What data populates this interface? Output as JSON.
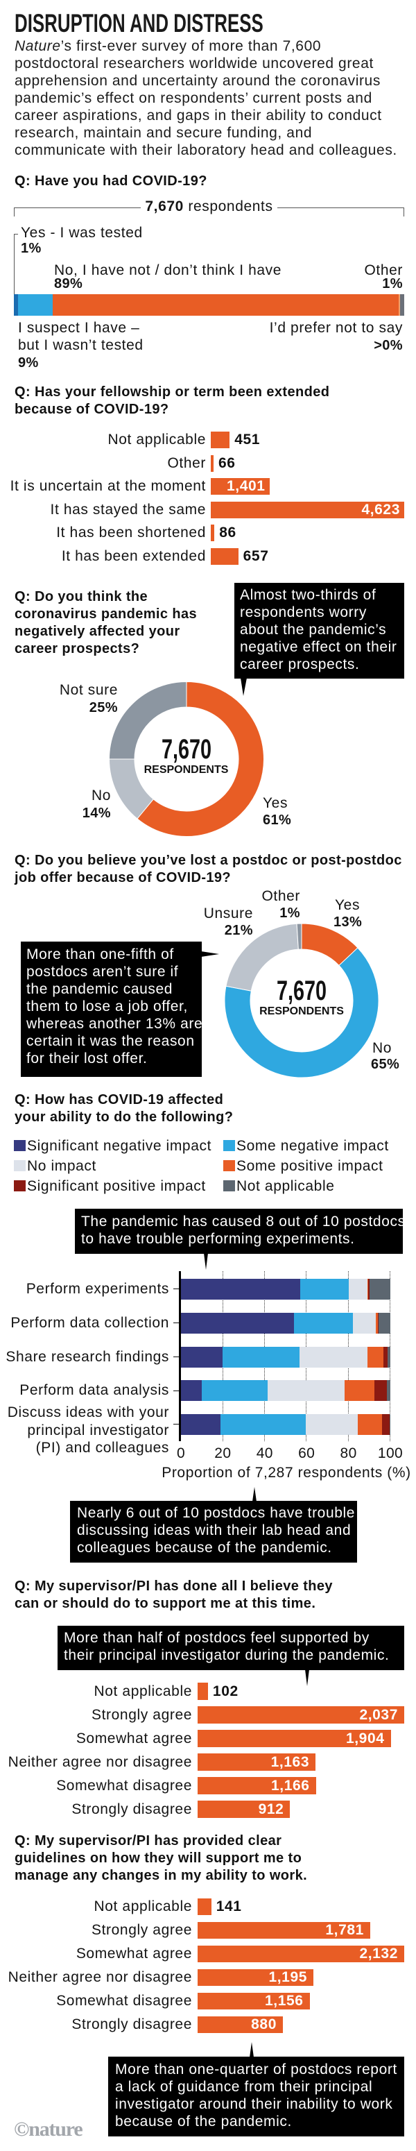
{
  "title": "DISRUPTION AND DISTRESS",
  "intro": {
    "lead_italic": "Nature",
    "text": "’s first-ever survey of more than 7,600\npostdoctoral researchers worldwide uncovered great\napprehension and uncertainty around the coronavirus\npandemic’s effect on respondents’ current posts and\ncareer aspirations, and gaps in their ability to conduct\nresearch, maintain and secure funding, and\ncommunicate with their laboratory head and colleagues."
  },
  "chart_data": [
    {
      "id": "had-covid",
      "type": "bar",
      "orientation": "horizontal",
      "stacked": true,
      "unit": "%",
      "title": "Q: Have you had COVID-19?",
      "total": "7,670",
      "total_suffix": " respondents",
      "segments": [
        {
          "name": "Yes - I was tested",
          "value": 1,
          "label": "1%",
          "color": "#1b6cb0"
        },
        {
          "name": "I suspect I have –\nbut I wasn’t tested",
          "value": 9,
          "label": "9%",
          "color": "#2fa8e0"
        },
        {
          "name": "No, I have not / don’t think I have",
          "value": 89,
          "label": "89%",
          "color": "#e85d25"
        },
        {
          "name": "I’d prefer not to say",
          "value": 0.4,
          "label": ">0%",
          "color": "#f2a06a"
        },
        {
          "name": "Other",
          "value": 1,
          "label": "1%",
          "color": "#6b7079"
        }
      ]
    },
    {
      "id": "fellowship-extended",
      "type": "bar",
      "orientation": "horizontal",
      "title": "Q: Has your fellowship or term been extended\nbecause of COVID-19?",
      "categories": [
        "Not applicable",
        "Other",
        "It is uncertain at the moment",
        "It has stayed the same",
        "It has been shortened",
        "It has been extended"
      ],
      "values": [
        451,
        66,
        1401,
        4623,
        86,
        657
      ],
      "value_labels": [
        "451",
        "66",
        "1,401",
        "4,623",
        "86",
        "657"
      ],
      "color": "#e85d25"
    },
    {
      "id": "career-prospects",
      "type": "pie",
      "donut": true,
      "title": "Q: Do you think the\ncoronavirus pandemic has\nnegatively affected your\ncareer prospects?",
      "center_value": "7,670",
      "center_label": "RESPONDENTS",
      "slices": [
        {
          "name": "Yes",
          "value": 61,
          "label": "61%",
          "color": "#e85d25"
        },
        {
          "name": "No",
          "value": 14,
          "label": "14%",
          "color": "#b8bfc8"
        },
        {
          "name": "Not sure",
          "value": 25,
          "label": "25%",
          "color": "#8c96a1"
        }
      ],
      "callout": "Almost two-thirds of\nrespondents worry\nabout the pandemic’s\nnegative effect on their\ncareer prospects."
    },
    {
      "id": "lost-job-offer",
      "type": "pie",
      "donut": true,
      "title": "Q: Do you believe you’ve lost a postdoc or post-postdoc\njob offer because of COVID-19?",
      "center_value": "7,670",
      "center_label": "RESPONDENTS",
      "slices": [
        {
          "name": "Yes",
          "value": 13,
          "label": "13%",
          "color": "#e85d25"
        },
        {
          "name": "No",
          "value": 65,
          "label": "65%",
          "color": "#2fa8e0"
        },
        {
          "name": "Unsure",
          "value": 21,
          "label": "21%",
          "color": "#bcc3cc"
        },
        {
          "name": "Other",
          "value": 1,
          "label": "1%",
          "color": "#8c96a1"
        }
      ],
      "callout": "More than one-fifth of\npostdocs aren’t sure if\nthe pandemic caused\nthem to lose a job offer,\nwhereas another 13% are\ncertain it was the reason\nfor their lost offer."
    },
    {
      "id": "ability-impact",
      "type": "bar",
      "orientation": "horizontal",
      "stacked": true,
      "title": "Q: How has COVID-19 affected\nyour ability to do the following?",
      "categories": [
        "Perform experiments",
        "Perform data collection",
        "Share research findings",
        "Perform data analysis",
        "Discuss ideas with your\nprincipal investigator\n(PI) and colleagues"
      ],
      "series": [
        {
          "name": "Significant negative impact",
          "color": "#363a80",
          "values": [
            57,
            54,
            20,
            10,
            19
          ]
        },
        {
          "name": "Some negative impact",
          "color": "#2fa8e0",
          "values": [
            23,
            28,
            36.5,
            31.5,
            40.5
          ]
        },
        {
          "name": "No impact",
          "color": "#dde2ea",
          "values": [
            9,
            11,
            32.5,
            36.5,
            25
          ]
        },
        {
          "name": "Some positive impact",
          "color": "#e85d25",
          "values": [
            0.5,
            1,
            7.8,
            14.3,
            11.5
          ]
        },
        {
          "name": "Significant positive impact",
          "color": "#8b1a12",
          "values": [
            0.5,
            0.5,
            2,
            6,
            3.8
          ]
        },
        {
          "name": "Not applicable",
          "color": "#5c6670",
          "values": [
            10,
            5.5,
            1.2,
            1.7,
            0.2
          ]
        }
      ],
      "xlabel": "Proportion of 7,287 respondents (%)",
      "xticks": [
        "0",
        "20",
        "40",
        "60",
        "80",
        "100"
      ],
      "xlim": [
        0,
        100
      ],
      "grid": "vertical dotted",
      "legend": "top",
      "callouts": [
        "The pandemic has caused 8 out of 10 postdocs\nto have trouble performing experiments.",
        "Nearly 6 out of 10 postdocs have trouble\ndiscussing ideas with their lab head and\ncolleagues because of the pandemic."
      ]
    },
    {
      "id": "supervisor-support",
      "type": "bar",
      "orientation": "horizontal",
      "title": "Q: My supervisor/PI has done all I believe they\ncan or should do to support me at this time.",
      "categories": [
        "Not applicable",
        "Strongly agree",
        "Somewhat agree",
        "Neither agree nor disagree",
        "Somewhat disagree",
        "Strongly disagree"
      ],
      "values": [
        102,
        2037,
        1904,
        1163,
        1166,
        912
      ],
      "value_labels": [
        "102",
        "2,037",
        "1,904",
        "1,163",
        "1,166",
        "912"
      ],
      "color": "#e85d25",
      "callout": "More than half of postdocs feel supported by\ntheir principal investigator during the pandemic."
    },
    {
      "id": "supervisor-guidelines",
      "type": "bar",
      "orientation": "horizontal",
      "title": "Q: My supervisor/PI has provided clear\nguidelines on how they will support me to\nmanage any changes in my ability to work.",
      "categories": [
        "Not applicable",
        "Strongly agree",
        "Somewhat agree",
        "Neither agree nor disagree",
        "Somewhat disagree",
        "Strongly disagree"
      ],
      "values": [
        141,
        1781,
        2132,
        1195,
        1156,
        880
      ],
      "value_labels": [
        "141",
        "1,781",
        "2,132",
        "1,195",
        "1,156",
        "880"
      ],
      "color": "#e85d25",
      "callout": "More than one-quarter of postdocs report\na lack of guidance from their principal\ninvestigator around their inability to work\nbecause of the pandemic."
    }
  ],
  "footer": {
    "logo": "©nature"
  }
}
